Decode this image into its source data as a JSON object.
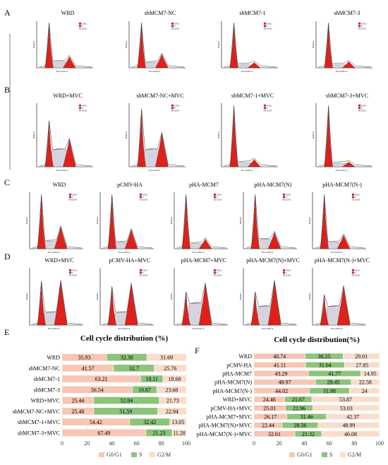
{
  "figure": {
    "panel_labels": [
      "A",
      "B",
      "C",
      "D",
      "E",
      "F"
    ],
    "histogram_rows": [
      {
        "label": "A",
        "titles": [
          "WRD",
          "shMCM7-NC",
          "shMCM7-1",
          "shMCM7-3"
        ]
      },
      {
        "label": "B",
        "titles": [
          "WRD+MVC",
          "shMCM7-NC+MVC",
          "shMCM7-1+MVC",
          "shMCM7-3+MVC"
        ]
      },
      {
        "label": "C",
        "titles": [
          "WRD",
          "pCMV-HA",
          "pHA-MCM7",
          "pHA-MCM7(N)",
          "pHA-MCM7(N-)"
        ]
      },
      {
        "label": "D",
        "titles": [
          "WRD+MVC",
          "pCMV-HA+MVC",
          "pHA-MCM7+MVC",
          "pHA-MCM7(N)+MVC",
          "pHA-MCM7(N-)+MVC"
        ]
      }
    ],
    "histogram_axis": {
      "xlabel": "FL2-A:PE-A",
      "ylabel": "Number"
    },
    "histogram_legend": [
      "G0/G1",
      "S",
      "G2/M"
    ],
    "colors": {
      "g0g1": "#f7c6b5",
      "s": "#8cc47a",
      "g2m": "#f8ddcc",
      "histogram_fill": "#e0201a",
      "histogram_s_fill": "#d6d3df",
      "histogram_line": "#333333"
    }
  },
  "chart_data": [
    {
      "type": "bar",
      "stacked": true,
      "orientation": "horizontal",
      "panel": "E",
      "title": "Cell cycle distribution (%)",
      "categories": [
        "WRD",
        "shMCM7-NC",
        "shMCM7-1",
        "shMCM7-3",
        "WRD+MVC",
        "shMCM7-NC+MVC",
        "shMCM7-1+MVC",
        "shMCM7-3+MVC"
      ],
      "series": [
        {
          "name": "G0/G1",
          "values": [
            35.93,
            41.57,
            63.21,
            56.54,
            25.44,
            25.48,
            54.42,
            67.49
          ],
          "labels": [
            "35.93",
            "41.57",
            "63.21",
            "56.54",
            "25.44",
            "25.48",
            "54.42",
            "67.49"
          ]
        },
        {
          "name": "S",
          "values": [
            32.38,
            32.7,
            18.11,
            19.87,
            52.84,
            51.59,
            32.42,
            21.23
          ],
          "labels": [
            "32.38",
            "32.7",
            "18.11",
            "19.87",
            "52.84",
            "51.59",
            "32.42",
            "21.23"
          ]
        },
        {
          "name": "G2/M",
          "values": [
            31.69,
            25.76,
            18.68,
            23.68,
            21.73,
            22.94,
            13.05,
            11.28
          ],
          "labels": [
            "31.69",
            "25.76",
            "18.68",
            "23.68",
            "21.73",
            "22.94",
            "13.05",
            "11.28"
          ]
        }
      ],
      "xlim": [
        0,
        100
      ],
      "xticks": [
        "0",
        "20",
        "40",
        "60",
        "80",
        "100"
      ],
      "legend": [
        "G0/G1",
        "S",
        "G2/M"
      ],
      "legend_position": "bottom"
    },
    {
      "type": "bar",
      "stacked": true,
      "orientation": "horizontal",
      "panel": "F",
      "title": "Cell cycle distribution(%)",
      "categories": [
        "WRD",
        "pCMV-HA",
        "pHA-MCM7",
        "pHA-MCM7(N)",
        "pHA-MCM7(N-)",
        "WRD+MVC",
        "pCMV-HA+MVC",
        "pHA-MCM7+MVC",
        "pHA-MCM7(N)+MVC",
        "pHA-MCM7(N-)+MVC"
      ],
      "series": [
        {
          "name": "G0/G1",
          "values": [
            40.74,
            41.11,
            43.29,
            48.97,
            44.02,
            24.46,
            25.01,
            26.17,
            22.44,
            32.61
          ],
          "labels": [
            "40.74",
            "41.11",
            "43.29",
            "48.97",
            "44.02",
            "24.46",
            "25.01",
            "26.17",
            "22.44",
            "32.61"
          ]
        },
        {
          "name": "S",
          "values": [
            30.25,
            31.04,
            41.77,
            28.45,
            31.98,
            21.67,
            21.96,
            31.46,
            28.56,
            21.32
          ],
          "labels": [
            "30.25",
            "31.04",
            "41.77",
            "28.45",
            "31.98",
            "21.67",
            "21.96",
            "31.46",
            "28.56",
            "21.32"
          ]
        },
        {
          "name": "G2/M",
          "values": [
            29.01,
            27.85,
            14.95,
            22.58,
            24,
            53.87,
            53.03,
            42.37,
            48.99,
            46.08
          ],
          "labels": [
            "29.01",
            "27.85",
            "14.95",
            "22.58",
            "24",
            "53.87",
            "53.03",
            "42.37",
            "48.99",
            "46.08"
          ]
        }
      ],
      "xlim": [
        0,
        100
      ],
      "xticks": [
        "0",
        "20",
        "40",
        "60",
        "80",
        "100"
      ],
      "legend": [
        "G0/G1",
        "S",
        "G2/M"
      ],
      "legend_position": "bottom"
    }
  ]
}
